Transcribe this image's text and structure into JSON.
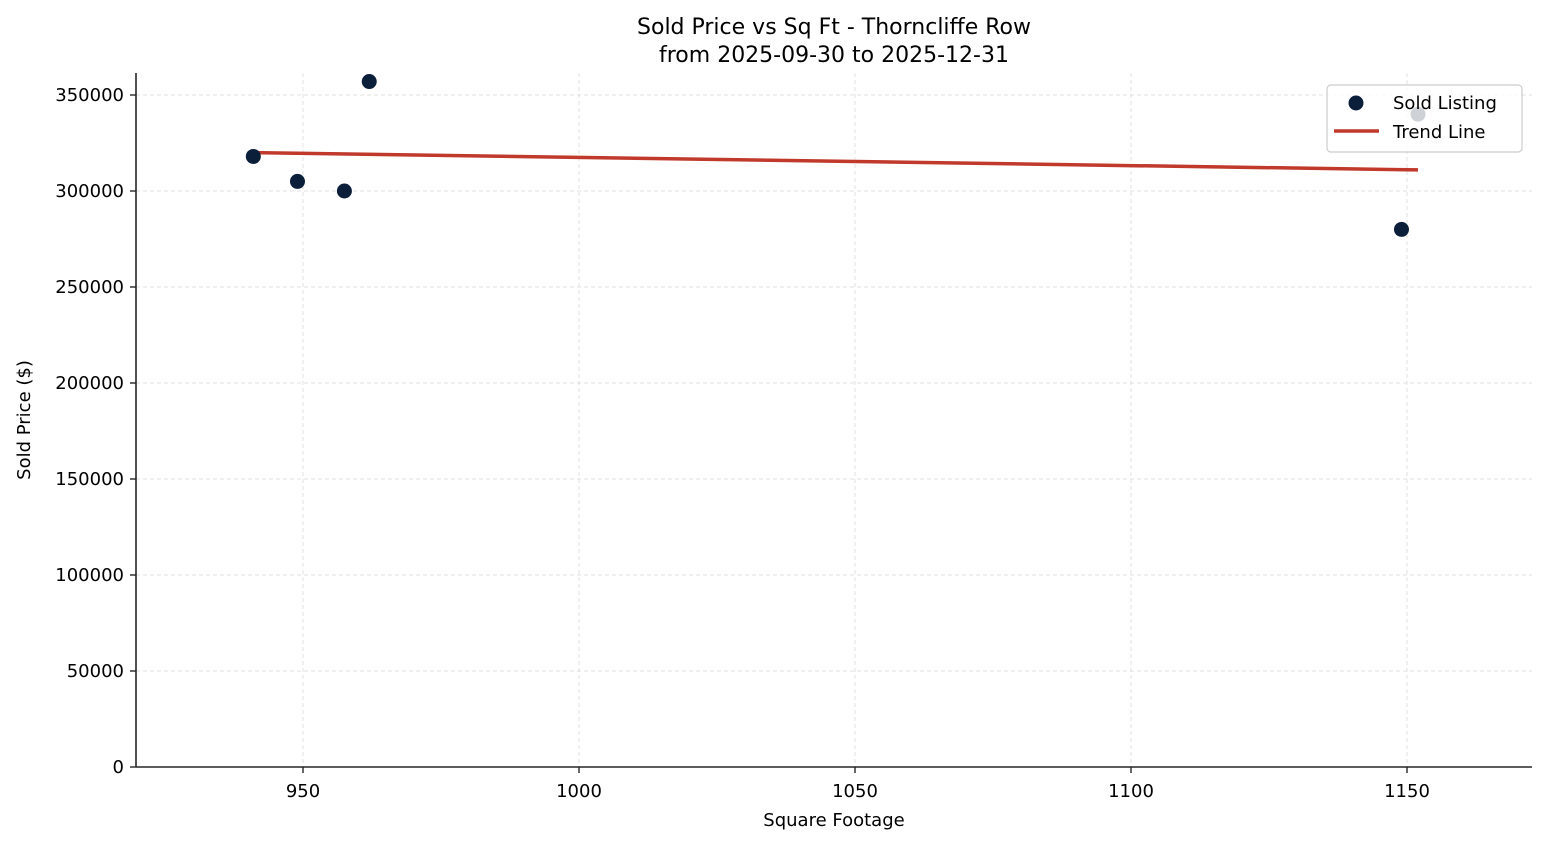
{
  "chart_data": {
    "type": "scatter",
    "title": "Sold Price vs Sq Ft - Thorncliffe Row",
    "subtitle": "from 2025-09-30 to 2025-12-31",
    "xlabel": "Square Footage",
    "ylabel": "Sold Price ($)",
    "xlim": [
      919.8,
      1172.7
    ],
    "ylim": [
      0,
      361000
    ],
    "x_ticks": [
      950,
      1000,
      1050,
      1100,
      1150
    ],
    "y_ticks": [
      0,
      50000,
      100000,
      150000,
      200000,
      250000,
      300000,
      350000
    ],
    "grid": true,
    "legend_position": "upper right",
    "series": [
      {
        "name": "Sold Listing",
        "kind": "scatter",
        "color": "#0b1f3a",
        "points": [
          {
            "x": 941,
            "y": 318000
          },
          {
            "x": 949,
            "y": 305000
          },
          {
            "x": 957.5,
            "y": 300000
          },
          {
            "x": 962,
            "y": 357000
          },
          {
            "x": 1149,
            "y": 280000
          },
          {
            "x": 1152,
            "y": 340000
          }
        ]
      },
      {
        "name": "Trend Line",
        "kind": "line",
        "color": "#c0392b",
        "points": [
          {
            "x": 941,
            "y": 320000
          },
          {
            "x": 1152,
            "y": 311000
          }
        ]
      }
    ]
  },
  "plot": {
    "title_line1": "Sold Price vs Sq Ft - Thorncliffe Row",
    "title_line2": "from 2025-09-30 to 2025-12-31",
    "xlabel": "Square Footage",
    "ylabel": "Sold Price ($)",
    "legend": {
      "scatter_label": "Sold Listing",
      "line_label": "Trend Line"
    }
  }
}
